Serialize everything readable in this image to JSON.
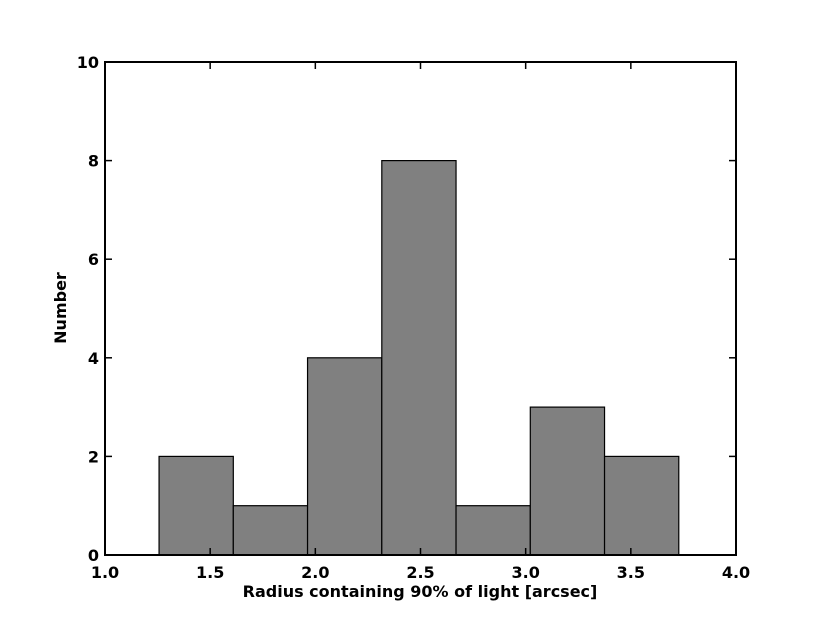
{
  "chart_data": {
    "type": "histogram",
    "xlabel": "Radius containing 90% of light [arcsec]",
    "ylabel": "Number",
    "bins": [
      1.257,
      1.61,
      1.963,
      2.316,
      2.669,
      3.022,
      3.375,
      3.728
    ],
    "values": [
      2,
      1,
      4,
      8,
      1,
      3,
      2
    ],
    "color": "#808080",
    "xlim": [
      1.0,
      4.0
    ],
    "xticks": [
      {
        "value": 1.0,
        "label": "1.0"
      },
      {
        "value": 1.5,
        "label": "1.5"
      },
      {
        "value": 2.0,
        "label": "2.0"
      },
      {
        "value": 2.5,
        "label": "2.5"
      },
      {
        "value": 3.0,
        "label": "3.0"
      },
      {
        "value": 3.5,
        "label": "3.5"
      },
      {
        "value": 4.0,
        "label": "4.0"
      }
    ],
    "ylim": [
      0,
      10
    ],
    "yticks": [
      0,
      2,
      4,
      6,
      8,
      10
    ]
  }
}
